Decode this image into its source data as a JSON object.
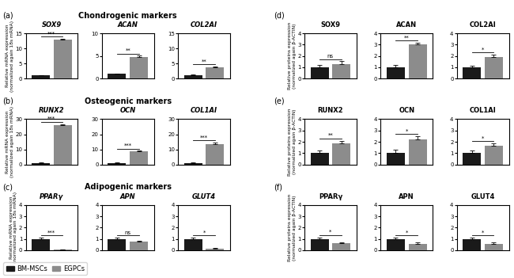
{
  "sections": [
    {
      "title": "Chondrogenic markers",
      "labels": [
        "(a)",
        "(d)"
      ]
    },
    {
      "title": "Osteogenic markers",
      "labels": [
        "(b)",
        "(e)"
      ]
    },
    {
      "title": "Adipogenic markers",
      "labels": [
        "(c)",
        "(f)"
      ]
    }
  ],
  "chart_data": [
    {
      "type": "bar",
      "title": "SOX9",
      "ylabel": "Relative mRNA expression\n(normalized again 18s mRNA)",
      "legend": "lower left",
      "tick_labels": "y",
      "categories": [
        null
      ],
      "series": [
        {
          "name": "BM-MSCs",
          "color": "#1a1a1a",
          "values": [
            1.0
          ],
          "errors": [
            0.12
          ]
        },
        {
          "name": "EGPCs",
          "color": "#8c8c8c",
          "values": [
            13.0
          ],
          "errors": [
            0.25
          ]
        }
      ],
      "ylim": [
        0,
        15
      ],
      "yticks": [
        0,
        5,
        10,
        15
      ],
      "annotations": [
        "***"
      ]
    },
    {
      "type": "bar",
      "title": "ACAN",
      "tick_labels": "y",
      "categories": [
        null
      ],
      "series": [
        {
          "name": "BM-MSCs",
          "color": "#1a1a1a",
          "values": [
            1.0
          ],
          "errors": [
            0.12
          ]
        },
        {
          "name": "EGPCs",
          "color": "#8c8c8c",
          "values": [
            4.8
          ],
          "errors": [
            0.25
          ]
        }
      ],
      "ylim": [
        0,
        10
      ],
      "yticks": [
        0,
        5,
        10
      ],
      "annotations": [
        "**"
      ]
    },
    {
      "type": "bar",
      "title": "COL2AI",
      "tick_labels": "y",
      "categories": [
        null
      ],
      "series": [
        {
          "name": "BM-MSCs",
          "color": "#1a1a1a",
          "values": [
            1.2
          ],
          "errors": [
            0.12
          ]
        },
        {
          "name": "EGPCs",
          "color": "#8c8c8c",
          "values": [
            3.8
          ],
          "errors": [
            0.25
          ]
        }
      ],
      "ylim": [
        0,
        15
      ],
      "yticks": [
        0,
        5,
        10,
        15
      ],
      "annotations": [
        "**"
      ]
    },
    {
      "type": "bar",
      "title": "SOX9",
      "ylabel": "Relative proteins expression\n(normalized again β-ACTIN)",
      "tick_labels": "y",
      "categories": [
        null
      ],
      "series": [
        {
          "name": "BM-MSCs",
          "color": "#1a1a1a",
          "values": [
            1.0
          ],
          "errors": [
            0.18
          ]
        },
        {
          "name": "EGPCs",
          "color": "#8c8c8c",
          "values": [
            1.3
          ],
          "errors": [
            0.22
          ]
        }
      ],
      "ylim": [
        0,
        4
      ],
      "yticks": [
        0,
        1,
        2,
        3,
        4
      ],
      "annotations": [
        "ns"
      ]
    },
    {
      "type": "bar",
      "title": "ACAN",
      "tick_labels": "y",
      "categories": [
        null
      ],
      "series": [
        {
          "name": "BM-MSCs",
          "color": "#1a1a1a",
          "values": [
            1.0
          ],
          "errors": [
            0.2
          ]
        },
        {
          "name": "EGPCs",
          "color": "#8c8c8c",
          "values": [
            3.0
          ],
          "errors": [
            0.18
          ]
        }
      ],
      "ylim": [
        0,
        4
      ],
      "yticks": [
        0,
        1,
        2,
        3,
        4
      ],
      "annotations": [
        "**"
      ]
    },
    {
      "type": "bar",
      "title": "COL2AI",
      "tick_labels": "y",
      "categories": [
        null
      ],
      "series": [
        {
          "name": "BM-MSCs",
          "color": "#1a1a1a",
          "values": [
            1.0
          ],
          "errors": [
            0.15
          ]
        },
        {
          "name": "EGPCs",
          "color": "#8c8c8c",
          "values": [
            1.9
          ],
          "errors": [
            0.22
          ]
        }
      ],
      "ylim": [
        0,
        4
      ],
      "yticks": [
        0,
        1,
        2,
        3,
        4
      ],
      "annotations": [
        "*"
      ]
    },
    {
      "type": "bar",
      "title": "RUNX2",
      "ylabel": "Relative mRNA expression\n(normalized again 18s mRNA)",
      "tick_labels": "y",
      "categories": [
        null
      ],
      "series": [
        {
          "name": "BM-MSCs",
          "color": "#1a1a1a",
          "values": [
            1.0
          ],
          "errors": [
            0.3
          ]
        },
        {
          "name": "EGPCs",
          "color": "#8c8c8c",
          "values": [
            26.0
          ],
          "errors": [
            0.8
          ]
        }
      ],
      "ylim": [
        0,
        30
      ],
      "yticks": [
        0,
        10,
        20,
        30
      ],
      "annotations": [
        "***"
      ]
    },
    {
      "type": "bar",
      "title": "OCN",
      "tick_labels": "y",
      "categories": [
        null
      ],
      "series": [
        {
          "name": "BM-MSCs",
          "color": "#1a1a1a",
          "values": [
            1.0
          ],
          "errors": [
            0.2
          ]
        },
        {
          "name": "EGPCs",
          "color": "#8c8c8c",
          "values": [
            8.5
          ],
          "errors": [
            0.5
          ]
        }
      ],
      "ylim": [
        0,
        30
      ],
      "yticks": [
        0,
        10,
        20,
        30
      ],
      "annotations": [
        "***"
      ]
    },
    {
      "type": "bar",
      "title": "COL1AI",
      "tick_labels": "y",
      "categories": [
        null
      ],
      "series": [
        {
          "name": "BM-MSCs",
          "color": "#1a1a1a",
          "values": [
            1.0
          ],
          "errors": [
            0.2
          ]
        },
        {
          "name": "EGPCs",
          "color": "#8c8c8c",
          "values": [
            13.5
          ],
          "errors": [
            0.8
          ]
        }
      ],
      "ylim": [
        0,
        30
      ],
      "yticks": [
        0,
        10,
        20,
        30
      ],
      "annotations": [
        "***"
      ]
    },
    {
      "type": "bar",
      "title": "RUNX2",
      "ylabel": "Relative proteins expression\n(normalized again β-ACTIN)",
      "tick_labels": "y",
      "categories": [
        null
      ],
      "series": [
        {
          "name": "BM-MSCs",
          "color": "#1a1a1a",
          "values": [
            1.0
          ],
          "errors": [
            0.2
          ]
        },
        {
          "name": "EGPCs",
          "color": "#8c8c8c",
          "values": [
            1.85
          ],
          "errors": [
            0.25
          ]
        }
      ],
      "ylim": [
        0,
        4
      ],
      "yticks": [
        0,
        1,
        2,
        3,
        4
      ],
      "annotations": [
        "**"
      ]
    },
    {
      "type": "bar",
      "title": "OCN",
      "tick_labels": "y",
      "categories": [
        null
      ],
      "series": [
        {
          "name": "BM-MSCs",
          "color": "#1a1a1a",
          "values": [
            1.0
          ],
          "errors": [
            0.3
          ]
        },
        {
          "name": "EGPCs",
          "color": "#8c8c8c",
          "values": [
            2.2
          ],
          "errors": [
            0.3
          ]
        }
      ],
      "ylim": [
        0,
        4
      ],
      "yticks": [
        0,
        1,
        2,
        3,
        4
      ],
      "annotations": [
        "*"
      ]
    },
    {
      "type": "bar",
      "title": "COL1AI",
      "tick_labels": "y",
      "categories": [
        null
      ],
      "series": [
        {
          "name": "BM-MSCs",
          "color": "#1a1a1a",
          "values": [
            1.0
          ],
          "errors": [
            0.2
          ]
        },
        {
          "name": "EGPCs",
          "color": "#8c8c8c",
          "values": [
            1.65
          ],
          "errors": [
            0.2
          ]
        }
      ],
      "ylim": [
        0,
        4
      ],
      "yticks": [
        0,
        1,
        2,
        3,
        4
      ],
      "annotations": [
        "*"
      ]
    },
    {
      "type": "bar",
      "title": "PPARγ",
      "ylabel": "Relative mRNA expression\n(normalized again 18s mRNA)",
      "tick_labels": "y",
      "categories": [
        null
      ],
      "series": [
        {
          "name": "BM-MSCs",
          "color": "#1a1a1a",
          "values": [
            1.0
          ],
          "errors": [
            0.1
          ]
        },
        {
          "name": "EGPCs",
          "color": "#8c8c8c",
          "values": [
            0.05
          ],
          "errors": [
            0.02
          ]
        }
      ],
      "ylim": [
        0,
        4
      ],
      "yticks": [
        0,
        1,
        2,
        3,
        4
      ],
      "annotations": [
        "***"
      ]
    },
    {
      "type": "bar",
      "title": "APN",
      "tick_labels": "y",
      "categories": [
        null
      ],
      "series": [
        {
          "name": "BM-MSCs",
          "color": "#1a1a1a",
          "values": [
            1.0
          ],
          "errors": [
            0.1
          ]
        },
        {
          "name": "EGPCs",
          "color": "#8c8c8c",
          "values": [
            0.75
          ],
          "errors": [
            0.1
          ]
        }
      ],
      "ylim": [
        0,
        4
      ],
      "yticks": [
        0,
        1,
        2,
        3,
        4
      ],
      "annotations": [
        "ns"
      ]
    },
    {
      "type": "bar",
      "title": "GLUT4",
      "tick_labels": "y",
      "categories": [
        null
      ],
      "series": [
        {
          "name": "BM-MSCs",
          "color": "#1a1a1a",
          "values": [
            1.0
          ],
          "errors": [
            0.1
          ]
        },
        {
          "name": "EGPCs",
          "color": "#8c8c8c",
          "values": [
            0.15
          ],
          "errors": [
            0.05
          ]
        }
      ],
      "ylim": [
        0,
        4
      ],
      "yticks": [
        0,
        1,
        2,
        3,
        4
      ],
      "annotations": [
        "*"
      ]
    },
    {
      "type": "bar",
      "title": "PPARγ",
      "ylabel": "Relative proteins expression\n(normalized again β-ACTIN)",
      "tick_labels": "y",
      "categories": [
        null
      ],
      "series": [
        {
          "name": "BM-MSCs",
          "color": "#1a1a1a",
          "values": [
            1.0
          ],
          "errors": [
            0.15
          ]
        },
        {
          "name": "EGPCs",
          "color": "#8c8c8c",
          "values": [
            0.62
          ],
          "errors": [
            0.1
          ]
        }
      ],
      "ylim": [
        0,
        4
      ],
      "yticks": [
        0,
        1,
        2,
        3,
        4
      ],
      "annotations": [
        "*"
      ]
    },
    {
      "type": "bar",
      "title": "APN",
      "tick_labels": "y",
      "categories": [
        null
      ],
      "series": [
        {
          "name": "BM-MSCs",
          "color": "#1a1a1a",
          "values": [
            1.0
          ],
          "errors": [
            0.12
          ]
        },
        {
          "name": "EGPCs",
          "color": "#8c8c8c",
          "values": [
            0.58
          ],
          "errors": [
            0.08
          ]
        }
      ],
      "ylim": [
        0,
        4
      ],
      "yticks": [
        0,
        1,
        2,
        3,
        4
      ],
      "annotations": [
        "*"
      ]
    },
    {
      "type": "bar",
      "title": "GLUT4",
      "tick_labels": "y",
      "categories": [
        null
      ],
      "series": [
        {
          "name": "BM-MSCs",
          "color": "#1a1a1a",
          "values": [
            1.0
          ],
          "errors": [
            0.12
          ]
        },
        {
          "name": "EGPCs",
          "color": "#8c8c8c",
          "values": [
            0.58
          ],
          "errors": [
            0.08
          ]
        }
      ],
      "ylim": [
        0,
        4
      ],
      "yticks": [
        0,
        1,
        2,
        3,
        4
      ],
      "annotations": [
        "*"
      ]
    }
  ]
}
